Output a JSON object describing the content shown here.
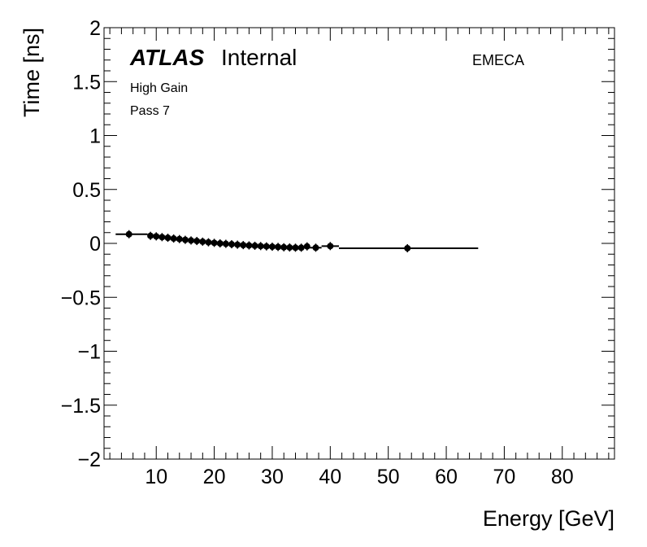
{
  "chart_data": {
    "type": "scatter",
    "title": "",
    "xlabel": "Energy [GeV]",
    "ylabel": "Time [ns]",
    "xlim": [
      1,
      89
    ],
    "ylim": [
      -2,
      2
    ],
    "x_ticks": [
      10,
      20,
      30,
      40,
      50,
      60,
      70,
      80
    ],
    "x_tick_labels": [
      "10",
      "20",
      "30",
      "40",
      "50",
      "60",
      "70",
      "80"
    ],
    "y_ticks": [
      2,
      1.5,
      1,
      0.5,
      0,
      -0.5,
      -1,
      -1.5,
      -2
    ],
    "y_tick_labels": [
      "2",
      "1.5",
      "1",
      "0.5",
      "0",
      "−0.5",
      "−1",
      "−1.5",
      "−2"
    ],
    "grid": false,
    "annotations": {
      "atlas": "ATLAS",
      "internal": "Internal",
      "gain": "High Gain",
      "pass": "Pass 7",
      "region": "EMECA"
    },
    "series": [
      {
        "points": [
          {
            "x": 5.3,
            "y": 0.085,
            "xerr": [
              3.0,
              8.5
            ]
          },
          {
            "x": 9.0,
            "y": 0.07,
            "xerr": [
              8.5,
              9.5
            ]
          },
          {
            "x": 10.0,
            "y": 0.065,
            "xerr": [
              9.5,
              10.5
            ]
          },
          {
            "x": 11.0,
            "y": 0.058,
            "xerr": [
              10.5,
              11.5
            ]
          },
          {
            "x": 12.0,
            "y": 0.052,
            "xerr": [
              11.5,
              12.5
            ]
          },
          {
            "x": 13.0,
            "y": 0.045,
            "xerr": [
              12.5,
              13.5
            ]
          },
          {
            "x": 14.0,
            "y": 0.04,
            "xerr": [
              13.5,
              14.5
            ]
          },
          {
            "x": 15.0,
            "y": 0.033,
            "xerr": [
              14.5,
              15.5
            ]
          },
          {
            "x": 16.0,
            "y": 0.027,
            "xerr": [
              15.5,
              16.5
            ]
          },
          {
            "x": 17.0,
            "y": 0.022,
            "xerr": [
              16.5,
              17.5
            ]
          },
          {
            "x": 18.0,
            "y": 0.016,
            "xerr": [
              17.5,
              18.5
            ]
          },
          {
            "x": 19.0,
            "y": 0.01,
            "xerr": [
              18.5,
              19.5
            ]
          },
          {
            "x": 20.0,
            "y": 0.005,
            "xerr": [
              19.5,
              20.5
            ]
          },
          {
            "x": 21.0,
            "y": 0.0,
            "xerr": [
              20.5,
              21.5
            ]
          },
          {
            "x": 22.0,
            "y": -0.004,
            "xerr": [
              21.5,
              22.5
            ]
          },
          {
            "x": 23.0,
            "y": -0.008,
            "xerr": [
              22.5,
              23.5
            ]
          },
          {
            "x": 24.0,
            "y": -0.012,
            "xerr": [
              23.5,
              24.5
            ]
          },
          {
            "x": 25.0,
            "y": -0.016,
            "xerr": [
              24.5,
              25.5
            ]
          },
          {
            "x": 26.0,
            "y": -0.019,
            "xerr": [
              25.5,
              26.5
            ]
          },
          {
            "x": 27.0,
            "y": -0.022,
            "xerr": [
              26.5,
              27.5
            ]
          },
          {
            "x": 28.0,
            "y": -0.025,
            "xerr": [
              27.5,
              28.5
            ]
          },
          {
            "x": 29.0,
            "y": -0.028,
            "xerr": [
              28.5,
              29.5
            ]
          },
          {
            "x": 30.0,
            "y": -0.031,
            "xerr": [
              29.5,
              30.5
            ]
          },
          {
            "x": 31.0,
            "y": -0.033,
            "xerr": [
              30.5,
              31.5
            ]
          },
          {
            "x": 32.0,
            "y": -0.036,
            "xerr": [
              31.5,
              32.5
            ]
          },
          {
            "x": 33.0,
            "y": -0.038,
            "xerr": [
              32.5,
              33.5
            ]
          },
          {
            "x": 34.0,
            "y": -0.04,
            "xerr": [
              33.5,
              34.5
            ]
          },
          {
            "x": 35.0,
            "y": -0.04,
            "xerr": [
              34.5,
              35.5
            ]
          },
          {
            "x": 36.0,
            "y": -0.028,
            "xerr": [
              35.5,
              36.5
            ]
          },
          {
            "x": 37.5,
            "y": -0.04,
            "xerr": [
              36.5,
              38.5
            ]
          },
          {
            "x": 40.0,
            "y": -0.025,
            "xerr": [
              38.5,
              41.5
            ]
          },
          {
            "x": 53.3,
            "y": -0.045,
            "xerr": [
              41.5,
              65.5
            ]
          }
        ]
      }
    ]
  }
}
